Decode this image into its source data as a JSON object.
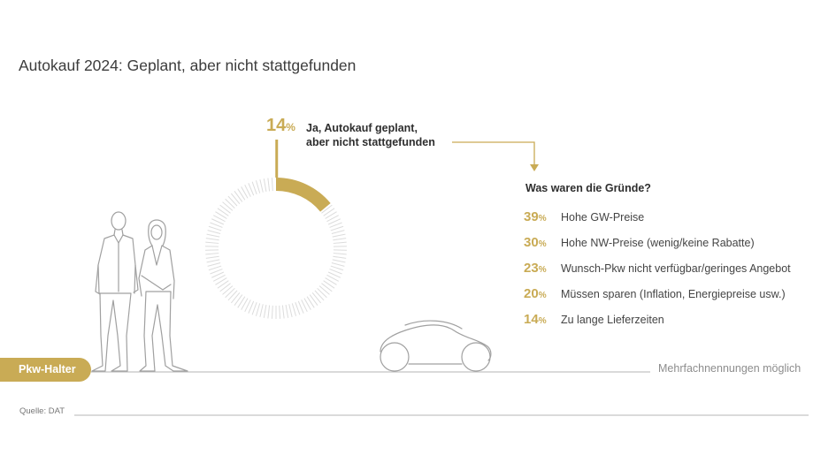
{
  "title": "Autokauf 2024: Geplant, aber nicht stattgefunden",
  "colors": {
    "accent": "#c9ab55",
    "track": "#dcdcdc",
    "text": "#3a3a3a",
    "line": "#b5b5b5"
  },
  "lead": {
    "value": "14",
    "unit": "%",
    "line1": "Ja, Autokauf geplant,",
    "line2": "aber nicht stattgefunden"
  },
  "question": "Was waren die Gründe?",
  "reasons": [
    {
      "value": "39",
      "unit": "%",
      "label": "Hohe GW-Preise"
    },
    {
      "value": "30",
      "unit": "%",
      "label": "Hohe NW-Preise (wenig/keine Rabatte)"
    },
    {
      "value": "23",
      "unit": "%",
      "label": "Wunsch-Pkw nicht verfügbar/geringes Angebot"
    },
    {
      "value": "20",
      "unit": "%",
      "label": "Müssen sparen (Inflation, Energiepreise usw.)"
    },
    {
      "value": "14",
      "unit": "%",
      "label": "Zu lange Lieferzeiten"
    }
  ],
  "badge": "Pkw-Halter",
  "note": "Mehrfachnennungen möglich",
  "source": "Quelle: DAT",
  "chart_data": {
    "type": "pie",
    "title": "Autokauf 2024: Geplant, aber nicht stattgefunden",
    "share": {
      "label": "Ja, Autokauf geplant, aber nicht stattgefunden",
      "value": 14
    },
    "categories": [
      "Hohe GW-Preise",
      "Hohe NW-Preise (wenig/keine Rabatte)",
      "Wunsch-Pkw nicht verfügbar/geringes Angebot",
      "Müssen sparen (Inflation, Energiepreise usw.)",
      "Zu lange Lieferzeiten"
    ],
    "values": [
      39,
      30,
      23,
      20,
      14
    ]
  }
}
